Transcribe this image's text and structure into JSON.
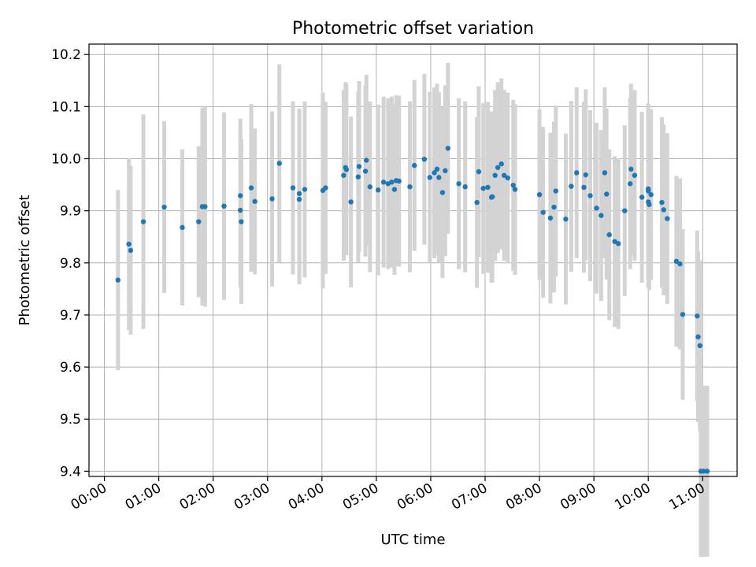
{
  "chart_data": {
    "type": "scatter",
    "title": "Photometric offset variation",
    "xlabel": "UTC time",
    "ylabel": "Photometric offset",
    "xlim": [
      "-00:17",
      "11:38"
    ],
    "ylim": [
      9.39,
      10.22
    ],
    "xticks": [
      "00:00",
      "01:00",
      "02:00",
      "03:00",
      "04:00",
      "05:00",
      "06:00",
      "07:00",
      "08:00",
      "09:00",
      "10:00",
      "11:00"
    ],
    "yticks": [
      9.4,
      9.5,
      9.6,
      9.7,
      9.8,
      9.9,
      10.0,
      10.1,
      10.2
    ],
    "ytick_labels": [
      "9.4",
      "9.5",
      "9.6",
      "9.7",
      "9.8",
      "9.9",
      "10.0",
      "10.1",
      "10.2"
    ],
    "grid": true,
    "colors": {
      "points": "#1f77b4",
      "errorbars": "#d3d3d3",
      "grid": "#b0b0b0"
    },
    "series": [
      {
        "x": [
          "00:15",
          "00:27",
          "00:29",
          "00:43",
          "01:06",
          "01:26",
          "01:44",
          "01:48",
          "01:51",
          "02:12",
          "02:30",
          "02:30",
          "02:31",
          "02:42",
          "02:46",
          "03:05",
          "03:13",
          "03:28",
          "03:35",
          "03:35",
          "03:41",
          "04:01",
          "04:04",
          "04:24",
          "04:26",
          "04:27",
          "04:32",
          "04:40",
          "04:41",
          "04:48",
          "04:49",
          "04:53",
          "05:02",
          "05:08",
          "05:13",
          "05:17",
          "05:20",
          "05:22",
          "05:25",
          "05:37",
          "05:42",
          "05:53",
          "05:59",
          "06:04",
          "06:07",
          "06:09",
          "06:13",
          "06:16",
          "06:19",
          "06:31",
          "06:38",
          "06:51",
          "06:53",
          "06:58",
          "07:03",
          "07:07",
          "07:08",
          "07:11",
          "07:14",
          "07:18",
          "07:21",
          "07:25",
          "07:31",
          "07:33",
          "08:00",
          "08:04",
          "08:12",
          "08:16",
          "08:18",
          "08:29",
          "08:35",
          "08:41",
          "08:49",
          "08:51",
          "08:56",
          "09:03",
          "09:08",
          "09:12",
          "09:14",
          "09:17",
          "09:23",
          "09:27",
          "09:34",
          "09:40",
          "09:41",
          "09:45",
          "09:53",
          "10:00",
          "10:00",
          "10:00",
          "10:01",
          "10:03",
          "10:15",
          "10:17",
          "10:21",
          "10:31",
          "10:35",
          "10:38",
          "10:54",
          "10:55",
          "10:57",
          "10:58",
          "11:01",
          "11:05"
        ],
        "y": [
          9.767,
          9.836,
          9.824,
          9.879,
          9.907,
          9.868,
          9.879,
          9.908,
          9.908,
          9.909,
          9.929,
          9.901,
          9.879,
          9.944,
          9.918,
          9.923,
          9.991,
          9.944,
          9.933,
          9.922,
          9.941,
          9.939,
          9.944,
          9.968,
          9.983,
          9.979,
          9.917,
          9.965,
          9.985,
          9.976,
          9.997,
          9.946,
          9.94,
          9.955,
          9.952,
          9.955,
          9.941,
          9.958,
          9.957,
          9.946,
          9.987,
          9.999,
          9.964,
          9.973,
          9.98,
          9.964,
          9.935,
          9.977,
          10.02,
          9.952,
          9.946,
          9.916,
          9.975,
          9.943,
          9.945,
          9.926,
          9.927,
          9.968,
          9.983,
          9.99,
          9.968,
          9.963,
          9.949,
          9.941,
          9.931,
          9.897,
          9.886,
          9.907,
          9.938,
          9.884,
          9.947,
          9.973,
          9.945,
          9.969,
          9.929,
          9.905,
          9.891,
          9.973,
          9.932,
          9.854,
          9.841,
          9.837,
          9.9,
          9.952,
          9.98,
          9.968,
          9.926,
          9.917,
          9.942,
          9.938,
          9.912,
          9.931,
          9.916,
          9.902,
          9.885,
          9.803,
          9.798,
          9.701,
          9.698,
          9.658,
          9.641,
          9.4,
          9.4,
          9.4
        ],
        "yerr": [
          0.173,
          0.165,
          0.162,
          0.206,
          0.165,
          0.15,
          0.145,
          0.19,
          0.192,
          0.18,
          0.148,
          0.148,
          0.158,
          0.161,
          0.14,
          0.168,
          0.19,
          0.166,
          0.163,
          0.163,
          0.169,
          0.188,
          0.165,
          0.164,
          0.164,
          0.164,
          0.164,
          0.164,
          0.164,
          0.164,
          0.164,
          0.164,
          0.164,
          0.164,
          0.164,
          0.164,
          0.164,
          0.164,
          0.164,
          0.164,
          0.164,
          0.164,
          0.164,
          0.164,
          0.164,
          0.164,
          0.164,
          0.164,
          0.164,
          0.164,
          0.164,
          0.164,
          0.164,
          0.164,
          0.164,
          0.164,
          0.164,
          0.164,
          0.164,
          0.164,
          0.164,
          0.164,
          0.164,
          0.164,
          0.164,
          0.164,
          0.164,
          0.164,
          0.164,
          0.164,
          0.164,
          0.164,
          0.164,
          0.164,
          0.164,
          0.164,
          0.164,
          0.164,
          0.164,
          0.164,
          0.164,
          0.164,
          0.164,
          0.164,
          0.164,
          0.164,
          0.164,
          0.164,
          0.164,
          0.164,
          0.164,
          0.164,
          0.164,
          0.164,
          0.164,
          0.164,
          0.164,
          0.164,
          0.164,
          0.164,
          0.164,
          0.164,
          0.164,
          0.164
        ]
      }
    ]
  }
}
